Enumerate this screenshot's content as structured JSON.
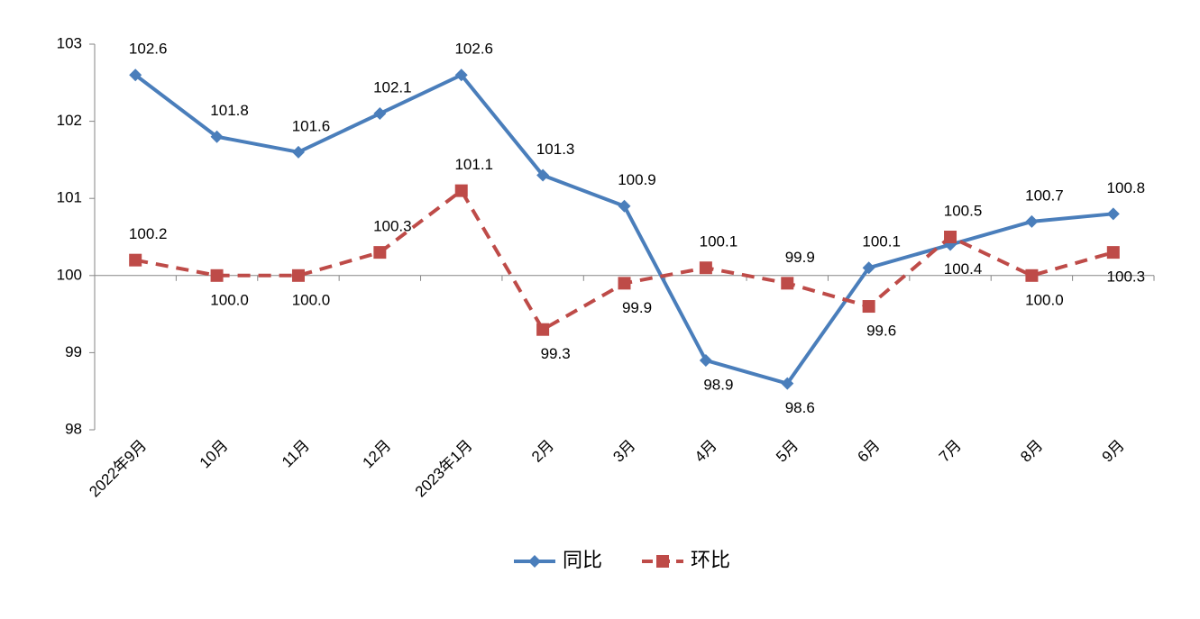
{
  "chart_data": {
    "type": "line",
    "categories": [
      "2022年9月",
      "10月",
      "11月",
      "12月",
      "2023年1月",
      "2月",
      "3月",
      "4月",
      "5月",
      "6月",
      "7月",
      "8月",
      "9月"
    ],
    "series": [
      {
        "name": "同比",
        "color": "#4a7ebb",
        "marker": "diamond",
        "dash": false,
        "values": [
          102.6,
          101.8,
          101.6,
          102.1,
          102.6,
          101.3,
          100.9,
          98.9,
          98.6,
          100.1,
          100.4,
          100.7,
          100.8
        ]
      },
      {
        "name": "环比",
        "color": "#be4b48",
        "marker": "square",
        "dash": true,
        "values": [
          100.2,
          100.0,
          100.0,
          100.3,
          101.1,
          99.3,
          99.9,
          100.1,
          99.9,
          99.6,
          100.5,
          100.0,
          100.3
        ],
        "value_labels": [
          "100.2",
          "100.0",
          "100.0",
          "100.3",
          "101.1",
          "99.3",
          "99.9",
          "100.1",
          "99.9",
          "99.6",
          "100.5",
          "100.0",
          "100.3"
        ]
      }
    ],
    "ylim": [
      98,
      103
    ],
    "yticks": [
      98,
      99,
      100,
      101,
      102,
      103
    ],
    "x_axis_at": 100,
    "legend": "bottom"
  }
}
